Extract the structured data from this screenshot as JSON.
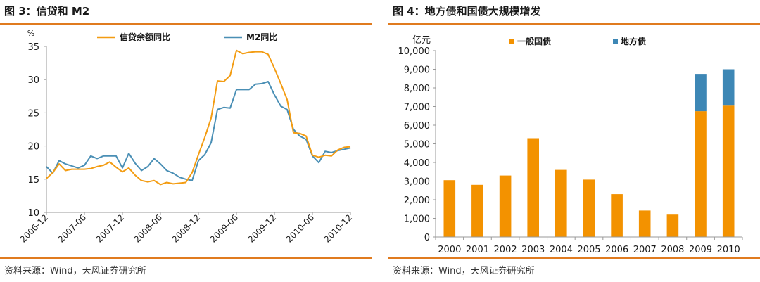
{
  "left": {
    "title": "图 3：信贷和 M2",
    "source": "资料来源：Wind，天风证券研究所",
    "chart_data": {
      "type": "line",
      "unit_label": "%",
      "ylim": [
        10,
        35
      ],
      "yticks": [
        10,
        15,
        20,
        25,
        30,
        35
      ],
      "xtick_labels": [
        "2006-12",
        "2007-06",
        "2007-12",
        "2008-06",
        "2008-12",
        "2009-06",
        "2009-12",
        "2010-06",
        "2010-12"
      ],
      "legend_position": "top",
      "grid": false,
      "series": [
        {
          "name": "信贷余额同比",
          "color": "#f39c12",
          "values": [
            15.1,
            16.0,
            17.3,
            16.3,
            16.5,
            16.5,
            16.5,
            16.6,
            16.9,
            17.1,
            17.6,
            16.8,
            16.1,
            16.7,
            15.6,
            14.8,
            14.6,
            14.8,
            14.2,
            14.5,
            14.3,
            14.4,
            14.5,
            16.0,
            18.7,
            21.3,
            24.2,
            29.8,
            29.7,
            30.6,
            34.4,
            33.9,
            34.1,
            34.2,
            34.2,
            33.8,
            31.7,
            29.4,
            27.0,
            22.0,
            21.9,
            21.5,
            18.6,
            18.3,
            18.6,
            18.5,
            19.4,
            19.8,
            19.9
          ]
        },
        {
          "name": "M2同比",
          "color": "#4a8fb5",
          "values": [
            16.9,
            15.9,
            17.8,
            17.3,
            17.0,
            16.7,
            17.1,
            18.5,
            18.1,
            18.5,
            18.5,
            18.5,
            16.7,
            18.9,
            17.4,
            16.3,
            16.9,
            18.1,
            17.3,
            16.3,
            15.9,
            15.3,
            15.0,
            14.8,
            17.8,
            18.7,
            20.5,
            25.5,
            25.8,
            25.7,
            28.5,
            28.5,
            28.5,
            29.3,
            29.4,
            29.7,
            27.7,
            26.0,
            25.5,
            22.5,
            21.5,
            21.0,
            18.5,
            17.5,
            19.2,
            19.0,
            19.3,
            19.5,
            19.7
          ]
        }
      ]
    }
  },
  "right": {
    "title": "图 4：地方债和国债大规模增发",
    "source": "资料来源：Wind，天风证券研究所",
    "chart_data": {
      "type": "bar",
      "stacked": true,
      "unit_label": "亿元",
      "ylim": [
        0,
        10000
      ],
      "yticks": [
        "0",
        "1,000",
        "2,000",
        "3,000",
        "4,000",
        "5,000",
        "6,000",
        "7,000",
        "8,000",
        "9,000",
        "10,000"
      ],
      "legend_position": "top",
      "grid": false,
      "categories": [
        "2000",
        "2001",
        "2002",
        "2003",
        "2004",
        "2005",
        "2006",
        "2007",
        "2008",
        "2009",
        "2010"
      ],
      "series": [
        {
          "name": "一般国债",
          "color": "#f39200",
          "values": [
            3050,
            2800,
            3300,
            5300,
            3600,
            3080,
            2300,
            1420,
            1200,
            6750,
            7050
          ]
        },
        {
          "name": "地方债",
          "color": "#3d87b5",
          "values": [
            0,
            0,
            0,
            0,
            0,
            0,
            0,
            0,
            0,
            2000,
            1950
          ]
        }
      ]
    }
  }
}
